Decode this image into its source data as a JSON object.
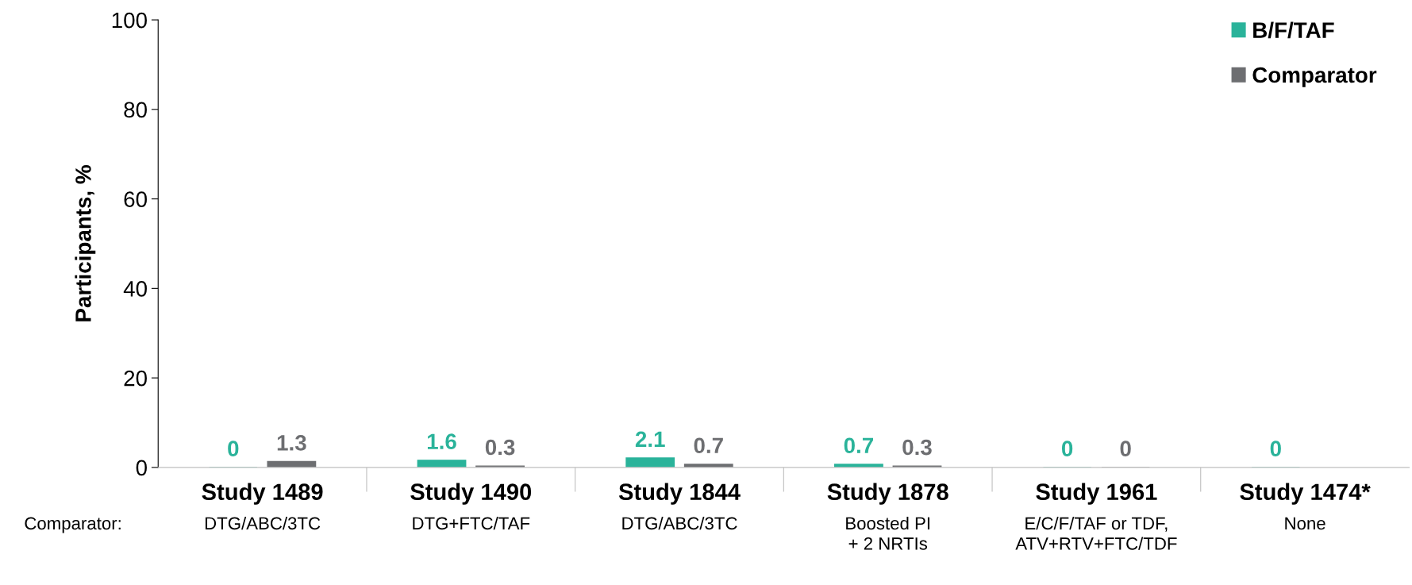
{
  "chart_data": {
    "type": "bar",
    "ylabel": "Participants, %",
    "categories": [
      "Study 1489",
      "Study 1490",
      "Study 1844",
      "Study 1878",
      "Study 1961",
      "Study 1474*"
    ],
    "series": [
      {
        "name": "B/F/TAF",
        "color": "#2ab39a",
        "values": [
          0,
          1.6,
          2.1,
          0.7,
          0,
          0
        ]
      },
      {
        "name": "Comparator",
        "color": "#6d6e71",
        "values": [
          1.3,
          0.3,
          0.7,
          0.3,
          0,
          null
        ]
      }
    ],
    "ylim": [
      0,
      100
    ],
    "yticks": [
      0,
      20,
      40,
      60,
      80,
      100
    ],
    "data_labels": true,
    "legend": "top right",
    "grid": false,
    "annotations": [
      "Comparator:",
      "DTG/ABC/3TC",
      "DTG+FTC/TAF",
      "DTG/ABC/3TC",
      "Boosted PI\n+ 2 NRTIs",
      "E/C/F/TAF or TDF,\nATV+RTV+FTC/TDF",
      "None"
    ]
  }
}
